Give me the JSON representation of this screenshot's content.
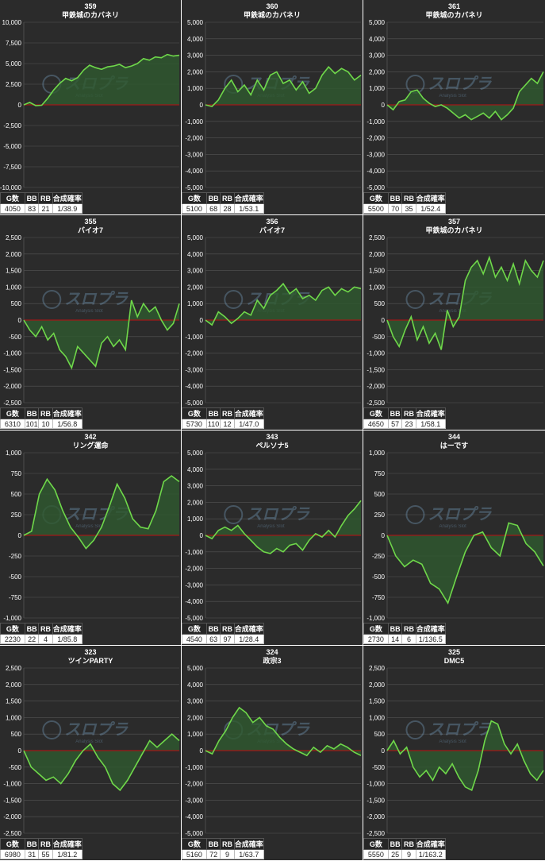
{
  "stat_headers": [
    "G数",
    "BB",
    "RB",
    "合成確率"
  ],
  "watermark": {
    "title": "スロプラ",
    "subtitle": "Analysis Slot"
  },
  "colors": {
    "panel": "#2b2b2b",
    "line": "#6fd84a",
    "fill": "#2f5a2f",
    "zero": "#a01818",
    "grid": "#555555"
  },
  "chart_data": [
    {
      "type": "line",
      "number": "359",
      "name": "甲鉄城のカバネリ",
      "ylim": [
        -10000,
        10000
      ],
      "yticks": [
        "10,000",
        "7,500",
        "5,000",
        "2,500",
        "0",
        "-2,500",
        "-5,000",
        "-7,500",
        "-10,000"
      ],
      "y": [
        0,
        300,
        -100,
        -50,
        800,
        1800,
        2600,
        3200,
        2900,
        3300,
        4200,
        4800,
        4500,
        4300,
        4600,
        4700,
        4900,
        4500,
        4700,
        5000,
        5600,
        5400,
        5800,
        5700,
        6100,
        5900,
        6000
      ],
      "stats": {
        "games": "4050",
        "bb": "83",
        "rb": "21",
        "rate": "1/38.9"
      }
    },
    {
      "type": "line",
      "number": "360",
      "name": "甲鉄城のカバネリ",
      "ylim": [
        -5000,
        5000
      ],
      "yticks": [
        "5,000",
        "4,000",
        "3,000",
        "2,000",
        "1,000",
        "0",
        "-1,000",
        "-2,000",
        "-3,000",
        "-4,000",
        "-5,000"
      ],
      "y": [
        0,
        -100,
        300,
        1000,
        1500,
        800,
        1200,
        600,
        1500,
        900,
        1800,
        2000,
        1300,
        1500,
        900,
        1400,
        700,
        1000,
        1800,
        2300,
        1900,
        2200,
        2000,
        1500,
        1800
      ],
      "stats": {
        "games": "5100",
        "bb": "68",
        "rb": "28",
        "rate": "1/53.1"
      }
    },
    {
      "type": "line",
      "number": "361",
      "name": "甲鉄城のカバネリ",
      "ylim": [
        -5000,
        5000
      ],
      "yticks": [
        "5,000",
        "4,000",
        "3,000",
        "2,000",
        "1,000",
        "0",
        "-1,000",
        "-2,000",
        "-3,000",
        "-4,000",
        "-5,000"
      ],
      "y": [
        0,
        -300,
        200,
        300,
        800,
        900,
        400,
        100,
        -100,
        0,
        -200,
        -500,
        -800,
        -600,
        -900,
        -700,
        -500,
        -800,
        -400,
        -900,
        -600,
        -200,
        800,
        1200,
        1600,
        1300,
        2000
      ],
      "stats": {
        "games": "5500",
        "bb": "70",
        "rb": "35",
        "rate": "1/52.4"
      }
    },
    {
      "type": "line",
      "number": "355",
      "name": "バイオ7",
      "ylim": [
        -2500,
        2500
      ],
      "yticks": [
        "2,500",
        "2,000",
        "1,500",
        "1,000",
        "500",
        "0",
        "-500",
        "-1,000",
        "-1,500",
        "-2,000",
        "-2,500"
      ],
      "y": [
        0,
        -300,
        -500,
        -200,
        -600,
        -400,
        -900,
        -1100,
        -1450,
        -800,
        -1000,
        -1200,
        -1400,
        -700,
        -500,
        -800,
        -600,
        -900,
        600,
        100,
        500,
        250,
        400,
        0,
        -300,
        -100,
        500
      ],
      "stats": {
        "games": "6310",
        "bb": "101",
        "rb": "10",
        "rate": "1/56.8"
      }
    },
    {
      "type": "line",
      "number": "356",
      "name": "バイオ7",
      "ylim": [
        -5000,
        5000
      ],
      "yticks": [
        "5,000",
        "4,000",
        "3,000",
        "2,000",
        "1,000",
        "0",
        "-1,000",
        "-2,000",
        "-3,000",
        "-4,000",
        "-5,000"
      ],
      "y": [
        0,
        -300,
        500,
        200,
        -200,
        100,
        500,
        300,
        1200,
        700,
        1500,
        1800,
        2200,
        1600,
        1900,
        1300,
        1500,
        1200,
        1800,
        2000,
        1500,
        1900,
        1700,
        2000,
        1900
      ],
      "stats": {
        "games": "5730",
        "bb": "110",
        "rb": "12",
        "rate": "1/47.0"
      }
    },
    {
      "type": "line",
      "number": "357",
      "name": "甲鉄城のカバネリ",
      "ylim": [
        -2500,
        2500
      ],
      "yticks": [
        "2,500",
        "2,000",
        "1,500",
        "1,000",
        "500",
        "0",
        "-500",
        "-1,000",
        "-1,500",
        "-2,000",
        "-2,500"
      ],
      "y": [
        0,
        -500,
        -800,
        -300,
        100,
        -600,
        -200,
        -700,
        -400,
        -900,
        300,
        -200,
        100,
        1200,
        1600,
        1800,
        1400,
        1900,
        1300,
        1600,
        1200,
        1700,
        1100,
        1800,
        1500,
        1300,
        1800
      ],
      "stats": {
        "games": "4650",
        "bb": "57",
        "rb": "23",
        "rate": "1/58.1"
      }
    },
    {
      "type": "line",
      "number": "342",
      "name": "リング運命",
      "ylim": [
        -1000,
        1000
      ],
      "yticks": [
        "1,000",
        "750",
        "500",
        "250",
        "0",
        "-250",
        "-500",
        "-750",
        "-1,000"
      ],
      "y": [
        0,
        50,
        500,
        680,
        550,
        300,
        100,
        -20,
        -160,
        -60,
        100,
        350,
        620,
        450,
        200,
        100,
        80,
        300,
        650,
        720,
        650
      ],
      "stats": {
        "games": "2230",
        "bb": "22",
        "rb": "4",
        "rate": "1/85.8"
      }
    },
    {
      "type": "line",
      "number": "343",
      "name": "ペルソナ5",
      "ylim": [
        -5000,
        5000
      ],
      "yticks": [
        "5,000",
        "4,000",
        "3,000",
        "2,000",
        "1,000",
        "0",
        "-1,000",
        "-2,000",
        "-3,000",
        "-4,000",
        "-5,000"
      ],
      "y": [
        0,
        -200,
        300,
        500,
        300,
        600,
        100,
        -300,
        -700,
        -1000,
        -1100,
        -800,
        -1000,
        -600,
        -500,
        -900,
        -300,
        100,
        -100,
        300,
        -100,
        600,
        1200,
        1600,
        2100
      ],
      "stats": {
        "games": "4540",
        "bb": "63",
        "rb": "97",
        "rate": "1/28.4"
      }
    },
    {
      "type": "line",
      "number": "344",
      "name": "はーです",
      "ylim": [
        -1000,
        1000
      ],
      "yticks": [
        "1,000",
        "750",
        "500",
        "250",
        "0",
        "-250",
        "-500",
        "-750",
        "-1,000"
      ],
      "y": [
        0,
        -250,
        -380,
        -300,
        -350,
        -580,
        -650,
        -820,
        -500,
        -200,
        0,
        40,
        -150,
        -250,
        150,
        120,
        -100,
        -200,
        -370
      ],
      "stats": {
        "games": "2730",
        "bb": "14",
        "rb": "6",
        "rate": "1/136.5"
      }
    },
    {
      "type": "line",
      "number": "323",
      "name": "ツインPARTY",
      "ylim": [
        -2500,
        2500
      ],
      "yticks": [
        "2,500",
        "2,000",
        "1,500",
        "1,000",
        "500",
        "0",
        "-500",
        "-1,000",
        "-1,500",
        "-2,000",
        "-2,500"
      ],
      "y": [
        0,
        -500,
        -700,
        -900,
        -800,
        -1000,
        -700,
        -300,
        0,
        200,
        -200,
        -500,
        -1000,
        -1200,
        -900,
        -500,
        -100,
        300,
        100,
        300,
        500,
        300
      ],
      "stats": {
        "games": "6980",
        "bb": "31",
        "rb": "55",
        "rate": "1/81.2"
      }
    },
    {
      "type": "line",
      "number": "324",
      "name": "政宗3",
      "ylim": [
        -5000,
        5000
      ],
      "yticks": [
        "5,000",
        "4,000",
        "3,000",
        "2,000",
        "1,000",
        "0",
        "-1,000",
        "-2,000",
        "-3,000",
        "-4,000",
        "-5,000"
      ],
      "y": [
        0,
        -200,
        600,
        1200,
        2000,
        2600,
        2300,
        1700,
        2000,
        1500,
        1300,
        800,
        400,
        100,
        -100,
        -300,
        200,
        -100,
        300,
        100,
        400,
        200,
        -100,
        -300
      ],
      "stats": {
        "games": "5160",
        "bb": "72",
        "rb": "9",
        "rate": "1/63.7"
      }
    },
    {
      "type": "line",
      "number": "325",
      "name": "DMC5",
      "ylim": [
        -2500,
        2500
      ],
      "yticks": [
        "2,500",
        "2,000",
        "1,500",
        "1,000",
        "500",
        "0",
        "-500",
        "-1,000",
        "-1,500",
        "-2,000",
        "-2,500"
      ],
      "y": [
        0,
        300,
        -100,
        100,
        -500,
        -800,
        -600,
        -900,
        -500,
        -700,
        -400,
        -800,
        -1100,
        -1200,
        -600,
        300,
        900,
        800,
        200,
        -100,
        200,
        -300,
        -700,
        -900,
        -600
      ],
      "stats": {
        "games": "5550",
        "bb": "25",
        "rb": "9",
        "rate": "1/163.2"
      }
    }
  ]
}
